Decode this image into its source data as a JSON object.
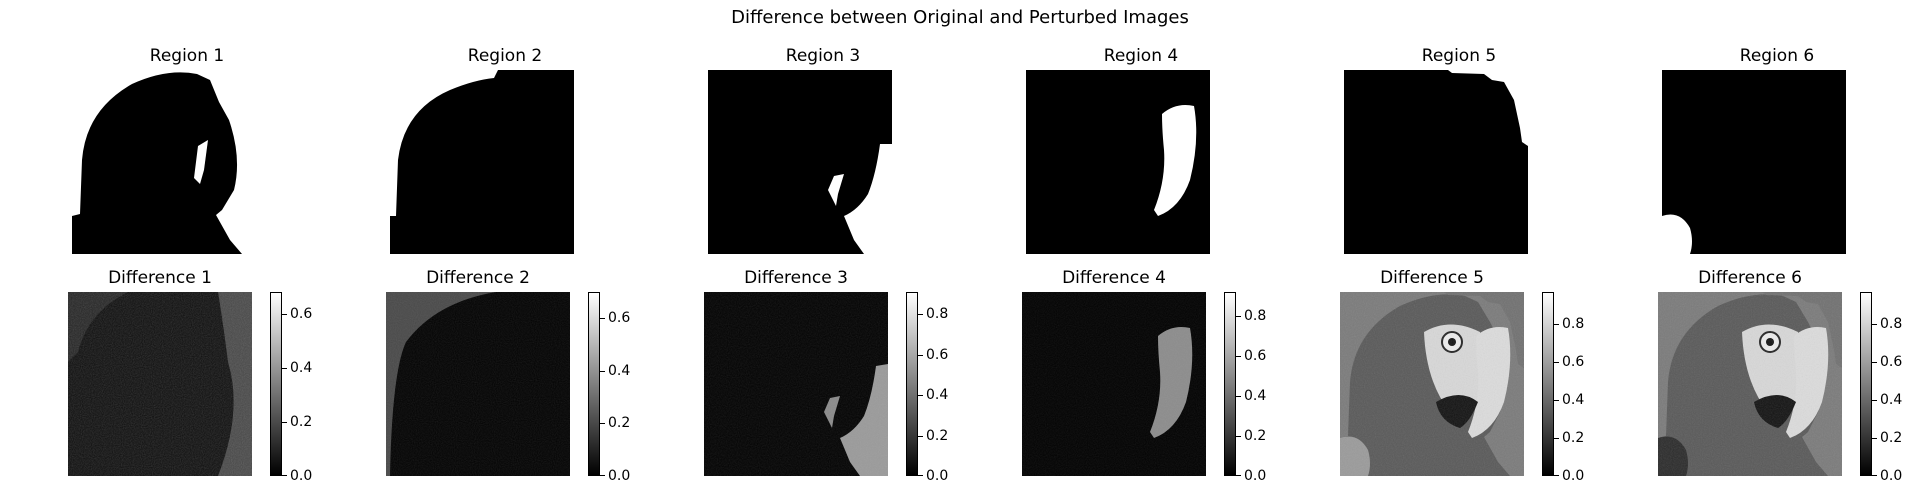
{
  "suptitle": "Difference between Original and Perturbed Images",
  "colors": {
    "mask_background": "#000000",
    "mask_region": "#ffffff",
    "colormap": "gray"
  },
  "chart_data": [
    {
      "type": "heatmap",
      "title": "Region 1",
      "kind": "mask"
    },
    {
      "type": "heatmap",
      "title": "Region 2",
      "kind": "mask"
    },
    {
      "type": "heatmap",
      "title": "Region 3",
      "kind": "mask"
    },
    {
      "type": "heatmap",
      "title": "Region 4",
      "kind": "mask"
    },
    {
      "type": "heatmap",
      "title": "Region 5",
      "kind": "mask"
    },
    {
      "type": "heatmap",
      "title": "Region 6",
      "kind": "mask"
    },
    {
      "type": "heatmap",
      "title": "Difference 1",
      "kind": "difference",
      "colorbar": {
        "range": [
          0,
          0.68
        ],
        "ticks": [
          "0.0",
          "0.2",
          "0.4",
          "0.6"
        ]
      }
    },
    {
      "type": "heatmap",
      "title": "Difference 2",
      "kind": "difference",
      "colorbar": {
        "range": [
          0,
          0.7
        ],
        "ticks": [
          "0.0",
          "0.2",
          "0.4",
          "0.6"
        ]
      }
    },
    {
      "type": "heatmap",
      "title": "Difference 3",
      "kind": "difference",
      "colorbar": {
        "range": [
          0,
          0.91
        ],
        "ticks": [
          "0.0",
          "0.2",
          "0.4",
          "0.6",
          "0.8"
        ]
      }
    },
    {
      "type": "heatmap",
      "title": "Difference 4",
      "kind": "difference",
      "colorbar": {
        "range": [
          0,
          0.92
        ],
        "ticks": [
          "0.0",
          "0.2",
          "0.4",
          "0.6",
          "0.8"
        ]
      }
    },
    {
      "type": "heatmap",
      "title": "Difference 5",
      "kind": "difference",
      "colorbar": {
        "range": [
          0,
          0.97
        ],
        "ticks": [
          "0.0",
          "0.2",
          "0.4",
          "0.6",
          "0.8"
        ]
      }
    },
    {
      "type": "heatmap",
      "title": "Difference 6",
      "kind": "difference",
      "colorbar": {
        "range": [
          0,
          0.97
        ],
        "ticks": [
          "0.0",
          "0.2",
          "0.4",
          "0.6",
          "0.8"
        ]
      }
    }
  ]
}
